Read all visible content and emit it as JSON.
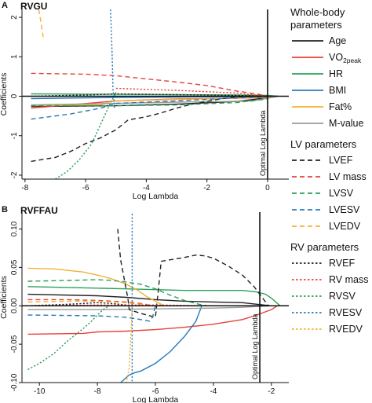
{
  "chart_data": [
    {
      "type": "line",
      "panel_letter": "A",
      "title": "RVGU",
      "xlabel": "Log Lambda",
      "ylabel": "Coefficients",
      "xlim": [
        -8.1,
        0.7
      ],
      "ylim": [
        -2.1,
        2.2
      ],
      "xticks": [
        -8,
        -6,
        -4,
        -2,
        0
      ],
      "yticks": [
        -2,
        -1,
        0,
        1,
        2
      ],
      "vline": {
        "x": 0,
        "label": "Optimal Log Lambda"
      },
      "series": [
        {
          "name": "Age",
          "color": "#222222",
          "dash": "solid",
          "x": [
            -7.8,
            -5.0,
            -3.0,
            -1.0,
            0.0,
            0.35
          ],
          "y": [
            -0.26,
            -0.24,
            -0.2,
            -0.13,
            -0.04,
            0.0
          ]
        },
        {
          "name": "VO2peak",
          "color": "#e8413b",
          "dash": "solid",
          "x": [
            -7.8,
            -5.0,
            -3.0,
            -1.0,
            0.0,
            0.35
          ],
          "y": [
            -0.3,
            -0.12,
            -0.07,
            -0.05,
            -0.03,
            0.0
          ]
        },
        {
          "name": "HR",
          "color": "#2ca05a",
          "dash": "solid",
          "x": [
            -7.8,
            -5.0,
            -3.0,
            -1.0,
            0.0,
            0.35
          ],
          "y": [
            0.06,
            0.05,
            0.04,
            0.03,
            0.02,
            0.0
          ]
        },
        {
          "name": "BMI",
          "color": "#2a79b8",
          "dash": "solid",
          "x": [
            -7.8,
            -5.0,
            -3.0,
            -1.0,
            0.0,
            0.35
          ],
          "y": [
            -0.06,
            -0.03,
            -0.02,
            -0.01,
            0.0,
            0.0
          ]
        },
        {
          "name": "Fat%",
          "color": "#f2b134",
          "dash": "solid",
          "x": [
            -7.8,
            -5.5,
            -5.1,
            -3.0,
            -1.0,
            0.0,
            0.35
          ],
          "y": [
            -0.24,
            -0.22,
            -0.12,
            -0.08,
            -0.05,
            -0.02,
            0.0
          ]
        },
        {
          "name": "M-value",
          "color": "#9a9a9a",
          "dash": "solid",
          "x": [
            -7.8,
            -5.0,
            -3.0,
            -1.0,
            -0.5,
            0.0,
            0.35
          ],
          "y": [
            -0.22,
            -0.18,
            -0.15,
            -0.13,
            -0.12,
            -0.05,
            0.0
          ]
        },
        {
          "name": "LVEF",
          "color": "#222222",
          "dash": "long",
          "x": [
            -7.8,
            -7.0,
            -6.5,
            -6.0,
            -5.5,
            -5.0,
            -4.6,
            -4.0,
            -3.5,
            -3.0,
            -2.5,
            -2.0,
            -1.5,
            -1.0,
            -0.5,
            0.0
          ],
          "y": [
            -1.65,
            -1.55,
            -1.4,
            -1.2,
            -1.05,
            -0.85,
            -0.6,
            -0.52,
            -0.42,
            -0.3,
            -0.2,
            -0.13,
            -0.06,
            -0.02,
            -0.01,
            0.0
          ]
        },
        {
          "name": "LV mass",
          "color": "#e8413b",
          "dash": "long",
          "x": [
            -7.8,
            -6.0,
            -5.0,
            -4.0,
            -3.0,
            -2.0,
            -1.0,
            -0.3,
            0.0
          ],
          "y": [
            0.58,
            0.56,
            0.52,
            0.44,
            0.36,
            0.27,
            0.13,
            0.05,
            0.0
          ]
        },
        {
          "name": "LVSV",
          "color": "#2ca05a",
          "dash": "long",
          "x": [
            -7.8,
            -5.0,
            -3.0,
            -1.0,
            0.0
          ],
          "y": [
            -0.24,
            -0.24,
            -0.22,
            -0.16,
            -0.07
          ]
        },
        {
          "name": "LVESV",
          "color": "#2a79b8",
          "dash": "long",
          "x": [
            -7.8,
            -6.5,
            -5.5,
            -5.0,
            -4.0,
            -3.0,
            -2.0,
            -1.0,
            0.0
          ],
          "y": [
            -0.58,
            -0.45,
            -0.3,
            -0.18,
            -0.15,
            -0.12,
            -0.08,
            -0.04,
            -0.02
          ]
        },
        {
          "name": "LVEDV",
          "color": "#f2b134",
          "dash": "long",
          "x": [
            -7.55,
            -7.48,
            -7.4
          ],
          "y": [
            2.2,
            1.9,
            1.5
          ]
        },
        {
          "name": "RVEF",
          "color": "#222222",
          "dash": "short",
          "x": [
            -7.8,
            -6.0,
            -5.0,
            -3.0,
            -1.0,
            0.0
          ],
          "y": [
            0.0,
            0.03,
            0.06,
            0.04,
            0.02,
            0.0
          ]
        },
        {
          "name": "RV mass",
          "color": "#e8413b",
          "dash": "short",
          "x": [
            -5.0,
            -3.0,
            -1.0,
            0.0
          ],
          "y": [
            0.2,
            0.15,
            0.08,
            0.0
          ]
        },
        {
          "name": "RVSV",
          "color": "#2ca05a",
          "dash": "short",
          "x": [
            -7.0,
            -6.6,
            -6.2,
            -5.8,
            -5.5,
            -5.2,
            -5.0
          ],
          "y": [
            -2.1,
            -1.9,
            -1.6,
            -1.2,
            -0.7,
            -0.2,
            0.1
          ]
        },
        {
          "name": "RVESV",
          "color": "#2a79b8",
          "dash": "short",
          "x": [
            -5.18,
            -5.15,
            -5.12,
            -5.1,
            -5.05
          ],
          "y": [
            2.2,
            1.6,
            0.9,
            0.2,
            -0.3
          ]
        },
        {
          "name": "RVEDV",
          "color": "#f2b134",
          "dash": "short",
          "x": [],
          "y": []
        }
      ]
    },
    {
      "type": "line",
      "panel_letter": "B",
      "title": "RVFFAU",
      "xlabel": "Log Lambda",
      "ylabel": "Coefficients",
      "xlim": [
        -10.6,
        -1.4
      ],
      "ylim": [
        -0.1,
        0.122
      ],
      "xticks": [
        -10,
        -8,
        -6,
        -4,
        -2
      ],
      "yticks": [
        -0.1,
        -0.05,
        0.0,
        0.05,
        0.1
      ],
      "vline": {
        "x": -2.4,
        "label": "Optimal Log Lambda"
      },
      "series": [
        {
          "name": "Age",
          "color": "#222222",
          "dash": "solid",
          "x": [
            -10.4,
            -8.0,
            -7.0,
            -6.0,
            -5.0,
            -4.0,
            -3.0,
            -2.5,
            -2.0
          ],
          "y": [
            0.015,
            0.013,
            0.011,
            0.008,
            0.006,
            0.005,
            0.004,
            0.002,
            0.0
          ]
        },
        {
          "name": "VO2peak",
          "color": "#e8413b",
          "dash": "solid",
          "x": [
            -10.4,
            -8.5,
            -8.0,
            -7.0,
            -6.0,
            -5.0,
            -4.0,
            -3.0,
            -2.5,
            -2.0,
            -1.8
          ],
          "y": [
            -0.037,
            -0.036,
            -0.034,
            -0.033,
            -0.031,
            -0.028,
            -0.024,
            -0.018,
            -0.012,
            -0.005,
            0.0
          ]
        },
        {
          "name": "HR",
          "color": "#2ca05a",
          "dash": "solid",
          "x": [
            -10.4,
            -8.0,
            -7.0,
            -6.0,
            -5.0,
            -4.0,
            -3.0,
            -2.5,
            -2.2,
            -2.0,
            -1.7
          ],
          "y": [
            0.025,
            0.023,
            0.022,
            0.021,
            0.02,
            0.02,
            0.02,
            0.018,
            0.015,
            0.01,
            0.0
          ]
        },
        {
          "name": "BMI",
          "color": "#2a79b8",
          "dash": "solid",
          "x": [
            -7.2,
            -6.9,
            -6.7,
            -6.5,
            -6.0,
            -5.5,
            -5.0,
            -4.6,
            -4.4
          ],
          "y": [
            -0.1,
            -0.09,
            -0.087,
            -0.085,
            -0.075,
            -0.06,
            -0.04,
            -0.02,
            0.0
          ]
        },
        {
          "name": "Fat%",
          "color": "#f2b134",
          "dash": "solid",
          "x": [
            -10.4,
            -9.5,
            -8.5,
            -8.0,
            -7.5,
            -7.0,
            -6.6,
            -6.3,
            -6.0,
            -5.7
          ],
          "y": [
            0.049,
            0.048,
            0.044,
            0.04,
            0.035,
            0.028,
            0.02,
            0.012,
            0.006,
            0.0
          ]
        },
        {
          "name": "M-value",
          "color": "#9a9a9a",
          "dash": "solid",
          "x": [
            -10.4,
            -8.0,
            -6.0,
            -4.0,
            -3.0,
            -2.5,
            -2.0
          ],
          "y": [
            -0.005,
            -0.005,
            -0.004,
            -0.003,
            -0.002,
            -0.001,
            0.0
          ]
        },
        {
          "name": "LVEF",
          "color": "#222222",
          "dash": "long",
          "x": [
            -7.3,
            -7.2,
            -7.05,
            -6.95,
            -6.9,
            -6.5,
            -6.0,
            -5.9,
            -5.8,
            -5.0,
            -4.6,
            -4.3,
            -4.0,
            -3.5,
            -3.0,
            -2.6,
            -2.3,
            -2.1
          ],
          "y": [
            0.1,
            0.06,
            0.03,
            0.01,
            -0.005,
            -0.01,
            -0.015,
            0.02,
            0.058,
            0.063,
            0.066,
            0.065,
            0.062,
            0.052,
            0.04,
            0.025,
            0.01,
            0.0
          ]
        },
        {
          "name": "LV mass",
          "color": "#e8413b",
          "dash": "long",
          "x": [
            -10.4,
            -9.0,
            -8.0,
            -7.0,
            -6.5,
            -6.2,
            -6.0
          ],
          "y": [
            0.008,
            0.008,
            0.007,
            0.005,
            0.003,
            0.001,
            0.0
          ]
        },
        {
          "name": "LVSV",
          "color": "#2ca05a",
          "dash": "long",
          "x": [
            -10.4,
            -9.0,
            -8.0,
            -7.5,
            -7.0,
            -6.5,
            -6.0,
            -5.5,
            -5.0,
            -4.5,
            -4.2
          ],
          "y": [
            0.032,
            0.033,
            0.034,
            0.033,
            0.031,
            0.028,
            0.022,
            0.014,
            0.007,
            0.002,
            0.0
          ]
        },
        {
          "name": "LVESV",
          "color": "#2a79b8",
          "dash": "long",
          "x": [
            -10.4,
            -8.0,
            -7.0,
            -6.5,
            -6.2,
            -6.1,
            -6.0
          ],
          "y": [
            -0.012,
            -0.013,
            -0.015,
            -0.018,
            -0.02,
            -0.015,
            0.0
          ]
        },
        {
          "name": "LVEDV",
          "color": "#f2b134",
          "dash": "long",
          "x": [
            -10.4,
            -9.0,
            -8.0,
            -7.0,
            -6.5,
            -6.0
          ],
          "y": [
            0.005,
            0.006,
            0.006,
            0.004,
            0.002,
            0.0
          ]
        },
        {
          "name": "RVEF",
          "color": "#222222",
          "dash": "short",
          "x": [
            -10.4,
            -9.0,
            -8.0,
            -7.5,
            -7.0,
            -6.6
          ],
          "y": [
            0.0,
            0.002,
            0.004,
            0.003,
            0.001,
            0.0
          ]
        },
        {
          "name": "RV mass",
          "color": "#e8413b",
          "dash": "short",
          "x": [
            -10.4,
            -8.0,
            -6.0,
            -4.0,
            -3.0
          ],
          "y": [
            0.0,
            0.001,
            0.001,
            0.0,
            0.0
          ]
        },
        {
          "name": "RVSV",
          "color": "#2ca05a",
          "dash": "short",
          "x": [
            -10.4,
            -10.0,
            -9.5,
            -9.0,
            -8.5,
            -8.2,
            -8.0,
            -7.8,
            -7.6
          ],
          "y": [
            -0.083,
            -0.075,
            -0.062,
            -0.045,
            -0.03,
            -0.02,
            -0.012,
            -0.005,
            0.0
          ]
        },
        {
          "name": "RVESV",
          "color": "#2a79b8",
          "dash": "short",
          "x": [
            -6.8,
            -6.8,
            -6.8
          ],
          "y": [
            0.12,
            0.05,
            -0.1
          ]
        },
        {
          "name": "RVEDV",
          "color": "#f2b134",
          "dash": "short",
          "x": [
            -6.8,
            -6.85,
            -6.9,
            -7.0
          ],
          "y": [
            0.0,
            -0.04,
            -0.08,
            -0.1
          ]
        }
      ]
    }
  ],
  "legend": {
    "groups": [
      {
        "title": "Whole-body parameters",
        "title_lines": [
          "Whole-body",
          "parameters"
        ],
        "items": [
          {
            "label": "Age",
            "sub": "",
            "color": "#222222",
            "dash": "solid"
          },
          {
            "label": "VO",
            "sub": "2peak",
            "color": "#e8413b",
            "dash": "solid"
          },
          {
            "label": "HR",
            "sub": "",
            "color": "#2ca05a",
            "dash": "solid"
          },
          {
            "label": "BMI",
            "sub": "",
            "color": "#2a79b8",
            "dash": "solid"
          },
          {
            "label": "Fat%",
            "sub": "",
            "color": "#f2b134",
            "dash": "solid"
          },
          {
            "label": "M-value",
            "sub": "",
            "color": "#9a9a9a",
            "dash": "solid"
          }
        ]
      },
      {
        "title": "LV parameters",
        "title_lines": [
          "LV parameters"
        ],
        "items": [
          {
            "label": "LVEF",
            "sub": "",
            "color": "#222222",
            "dash": "long"
          },
          {
            "label": "LV mass",
            "sub": "",
            "color": "#e8413b",
            "dash": "long"
          },
          {
            "label": "LVSV",
            "sub": "",
            "color": "#2ca05a",
            "dash": "long"
          },
          {
            "label": "LVESV",
            "sub": "",
            "color": "#2a79b8",
            "dash": "long"
          },
          {
            "label": "LVEDV",
            "sub": "",
            "color": "#f2b134",
            "dash": "long"
          }
        ]
      },
      {
        "title": "RV parameters",
        "title_lines": [
          "RV parameters"
        ],
        "items": [
          {
            "label": "RVEF",
            "sub": "",
            "color": "#222222",
            "dash": "short"
          },
          {
            "label": "RV mass",
            "sub": "",
            "color": "#e8413b",
            "dash": "short"
          },
          {
            "label": "RVSV",
            "sub": "",
            "color": "#2ca05a",
            "dash": "short"
          },
          {
            "label": "RVESV",
            "sub": "",
            "color": "#2a79b8",
            "dash": "short"
          },
          {
            "label": "RVEDV",
            "sub": "",
            "color": "#f2b134",
            "dash": "short"
          }
        ]
      }
    ]
  }
}
